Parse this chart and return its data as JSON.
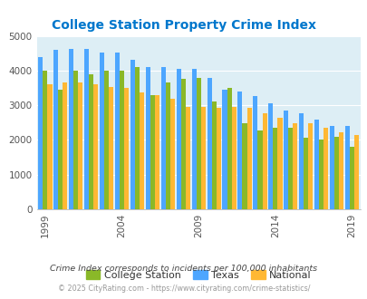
{
  "title": "College Station Property Crime Index",
  "subtitle": "Crime Index corresponds to incidents per 100,000 inhabitants",
  "footer": "© 2025 CityRating.com - https://www.cityrating.com/crime-statistics/",
  "years": [
    1999,
    2000,
    2001,
    2002,
    2003,
    2004,
    2005,
    2006,
    2007,
    2008,
    2009,
    2010,
    2011,
    2012,
    2013,
    2014,
    2015,
    2016,
    2017,
    2018,
    2019,
    2020
  ],
  "college_station": [
    4000,
    3450,
    4000,
    3880,
    4000,
    4000,
    4100,
    3300,
    3650,
    3750,
    3800,
    3100,
    3500,
    2480,
    2260,
    2340,
    2340,
    2060,
    2000,
    2090,
    1790,
    null
  ],
  "texas": [
    4400,
    4600,
    4620,
    4620,
    4520,
    4520,
    4300,
    4100,
    4100,
    4050,
    4050,
    3800,
    3450,
    3400,
    3260,
    3050,
    2860,
    2780,
    2580,
    2400,
    2400,
    null
  ],
  "national": [
    3600,
    3650,
    3650,
    3600,
    3520,
    3490,
    3380,
    3300,
    3200,
    2960,
    2960,
    2920,
    2940,
    2920,
    2760,
    2640,
    2490,
    2490,
    2350,
    2220,
    2130,
    null
  ],
  "color_cs": "#8ab828",
  "color_tx": "#4da6ff",
  "color_nat": "#ffb833",
  "bg_color": "#ddeef5",
  "title_color": "#0077cc",
  "ylim": [
    0,
    5000
  ],
  "yticks": [
    0,
    1000,
    2000,
    3000,
    4000,
    5000
  ],
  "subtitle_color": "#444444",
  "footer_color": "#999999"
}
